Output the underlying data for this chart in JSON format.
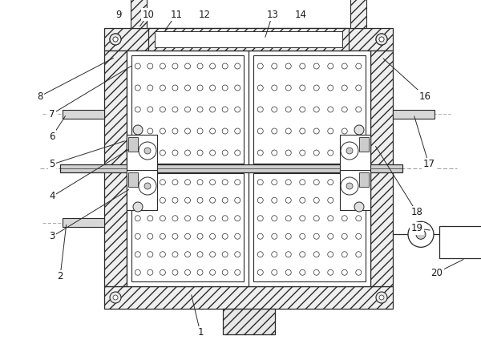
{
  "fig_width": 6.0,
  "fig_height": 4.29,
  "dpi": 100,
  "bg_color": "#ffffff",
  "lc": "#2a2a2a",
  "ML": 0.22,
  "MR": 0.8,
  "MT": 0.87,
  "MB": 0.12,
  "WT": 0.048
}
